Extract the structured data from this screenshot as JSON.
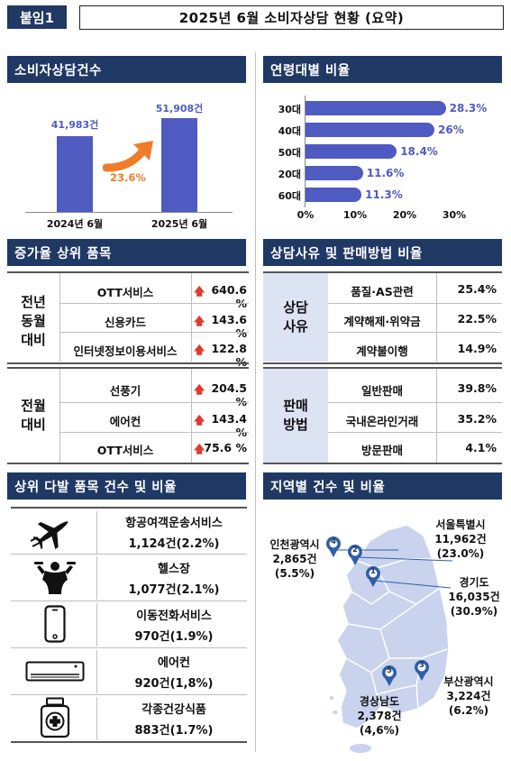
{
  "header": {
    "badge": "붙임1",
    "title": "2025년 6월 소비자상담 현황 (요약)"
  },
  "sections": {
    "consult_count": "소비자상담건수",
    "age_ratio": "연령대별 비율",
    "growth_items": "증가율 상위 품목",
    "reason_method": "상담사유 및 판매방법 비율",
    "top_items": "상위 다발 품목 건수 및 비율",
    "region": "지역별 건수 및 비율"
  },
  "consult_chart": {
    "chart_data": {
      "type": "bar",
      "categories": [
        "2024년 6월",
        "2025년 6월"
      ],
      "values": [
        41983,
        51908
      ],
      "value_labels": [
        "41,983건",
        "51,908건"
      ],
      "growth_label": "23.6%"
    }
  },
  "age_chart": {
    "chart_data": {
      "type": "bar",
      "orientation": "horizontal",
      "categories": [
        "30대",
        "40대",
        "50대",
        "20대",
        "60대"
      ],
      "values": [
        28.3,
        26,
        18.4,
        11.6,
        11.3
      ],
      "value_labels": [
        "28.3%",
        "26%",
        "18.4%",
        "11.6%",
        "11.3%"
      ],
      "x_ticks": [
        "0%",
        "10%",
        "20%",
        "30%"
      ],
      "xlim": [
        0,
        30
      ]
    }
  },
  "growth": {
    "groups": [
      {
        "label_lines": [
          "전년",
          "동월",
          "대비"
        ],
        "rows": [
          {
            "item": "OTT서비스",
            "value": "640.6 %"
          },
          {
            "item": "신용카드",
            "value": "143.6 %"
          },
          {
            "item": "인터넷정보이용서비스",
            "value": "122.8 %"
          }
        ]
      },
      {
        "label_lines": [
          "전월",
          "대비"
        ],
        "rows": [
          {
            "item": "선풍기",
            "value": "204.5 %"
          },
          {
            "item": "에어컨",
            "value": "143.4 %"
          },
          {
            "item": "OTT서비스",
            "value": "75.6 %"
          }
        ]
      }
    ],
    "arrow": "🡅"
  },
  "reason": {
    "groups": [
      {
        "label_lines": [
          "상담",
          "사유"
        ],
        "rows": [
          {
            "item": "품질·AS관련",
            "value": "25.4%"
          },
          {
            "item": "계약해제·위약금",
            "value": "22.5%"
          },
          {
            "item": "계약불이행",
            "value": "14.9%"
          }
        ]
      },
      {
        "label_lines": [
          "판매",
          "방법"
        ],
        "rows": [
          {
            "item": "일반판매",
            "value": "39.8%"
          },
          {
            "item": "국내온라인거래",
            "value": "35.2%"
          },
          {
            "item": "방문판매",
            "value": "4.1%"
          }
        ]
      }
    ]
  },
  "top_items": [
    {
      "icon": "airplane-icon",
      "name": "항공여객운송서비스",
      "count": "1,124건(2.2%)"
    },
    {
      "icon": "bodybuilder-icon",
      "name": "헬스장",
      "count": "1,077건(2.1%)"
    },
    {
      "icon": "mobile-phone-icon",
      "name": "이동전화서비스",
      "count": "970건(1.9%)"
    },
    {
      "icon": "air-conditioner-icon",
      "name": "에어컨",
      "count": "920건(1,8%)"
    },
    {
      "icon": "health-food-icon",
      "name": "각종건강식품",
      "count": "883건(1.7%)"
    }
  ],
  "regions": {
    "seoul": {
      "num": "2",
      "name": "서울특별시",
      "count": "11,962건",
      "pct": "(23.0%)"
    },
    "gyeonggi": {
      "num": "1",
      "name": "경기도",
      "count": "16,035건",
      "pct": "(30.9%)"
    },
    "incheon": {
      "num": "4",
      "name": "인천광역시",
      "count": "2,865건",
      "pct": "(5.5%)"
    },
    "busan": {
      "num": "3",
      "name": "부산광역시",
      "count": "3,224건",
      "pct": "(6.2%)"
    },
    "gyeongnam": {
      "num": "5",
      "name": "경상남도",
      "count": "2,378건",
      "pct": "(4,6%)"
    }
  },
  "colors": {
    "navy": "#1f3864",
    "bar": "#4f5bc0",
    "orange": "#f07c2a",
    "red": "#e03a2f",
    "map": "#c9d3ee"
  }
}
